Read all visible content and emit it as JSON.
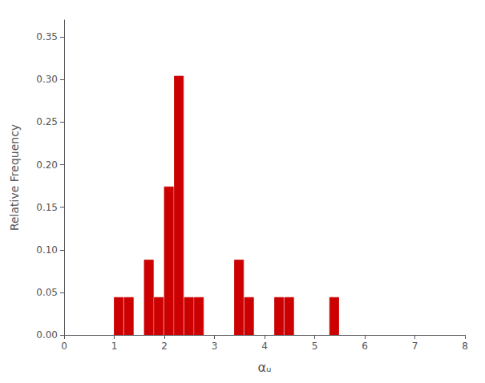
{
  "chart_data": {
    "type": "bar",
    "x": [
      1.0,
      1.2,
      1.6,
      1.8,
      2.0,
      2.2,
      2.4,
      2.6,
      3.4,
      3.6,
      4.2,
      4.4,
      5.3
    ],
    "values": [
      0.044,
      0.044,
      0.088,
      0.044,
      0.174,
      0.304,
      0.044,
      0.044,
      0.088,
      0.044,
      0.044,
      0.044,
      0.044
    ],
    "bar_width": 0.18,
    "color": "#cc0000",
    "xlabel": "αᵤ",
    "ylabel": "Relative Frequency",
    "xlim": [
      0,
      8
    ],
    "xticks": [
      0,
      1,
      2,
      3,
      4,
      5,
      6,
      7,
      8
    ],
    "ylim": [
      0,
      0.37
    ],
    "yticks": [
      {
        "value": 0,
        "label": "0.00"
      },
      0.05,
      {
        "value": 0.1,
        "label": "0.10"
      },
      0.15,
      {
        "value": 0.2,
        "label": "0.20"
      },
      0.25,
      {
        "value": 0.3,
        "label": "0.30"
      },
      0.35
    ],
    "grid": false
  }
}
